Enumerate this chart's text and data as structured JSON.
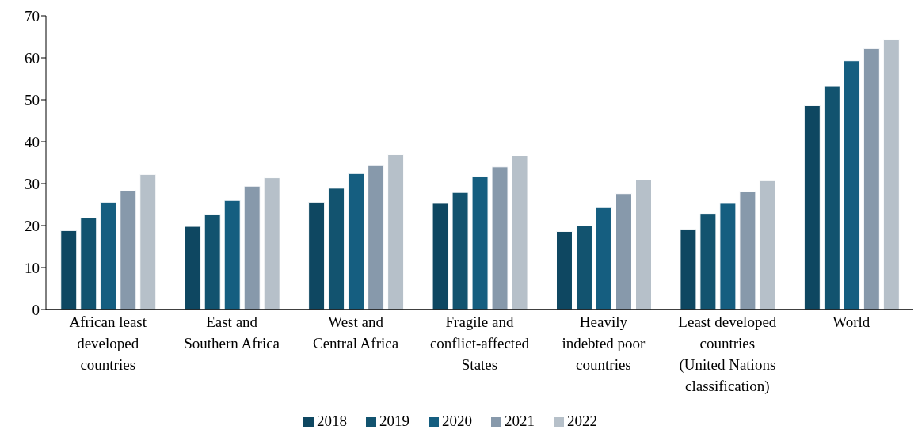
{
  "chart_data": {
    "type": "bar",
    "categories": [
      "African least developed countries",
      "East and Southern Africa",
      "West and Central Africa",
      "Fragile and conflict-affected States",
      "Heavily indebted poor countries",
      "Least developed countries (United Nations classification)",
      "World"
    ],
    "series": [
      {
        "name": "2018",
        "color": "#0e4761",
        "values": [
          18.8,
          19.8,
          25.6,
          25.3,
          18.6,
          19.1,
          48.6
        ]
      },
      {
        "name": "2019",
        "color": "#12536f",
        "values": [
          21.8,
          22.7,
          28.9,
          27.9,
          20.0,
          22.9,
          53.2
        ]
      },
      {
        "name": "2020",
        "color": "#155e80",
        "values": [
          25.6,
          26.0,
          32.4,
          31.8,
          24.3,
          25.3,
          59.3
        ]
      },
      {
        "name": "2021",
        "color": "#8799ab",
        "values": [
          28.4,
          29.4,
          34.3,
          34.0,
          27.6,
          28.2,
          62.2
        ]
      },
      {
        "name": "2022",
        "color": "#b6c0c9",
        "values": [
          32.2,
          31.4,
          36.9,
          36.7,
          30.9,
          30.7,
          64.4
        ]
      }
    ],
    "ylim": [
      0,
      70
    ],
    "yticks": [
      0,
      10,
      20,
      30,
      40,
      50,
      60,
      70
    ],
    "grid": false,
    "legend": "bottom"
  }
}
